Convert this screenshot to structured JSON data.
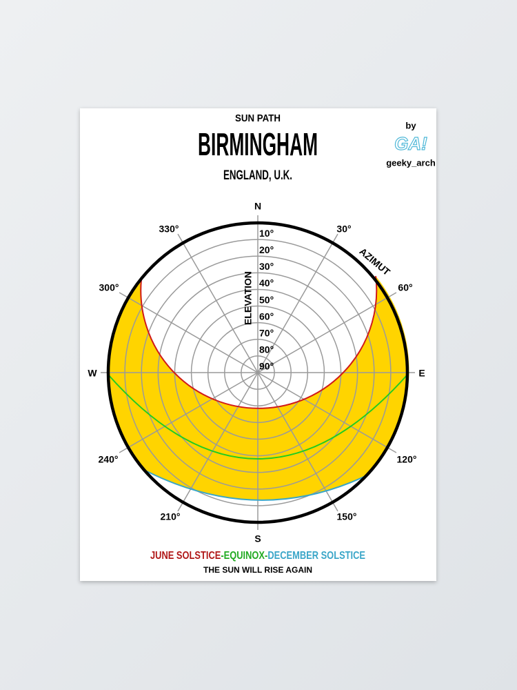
{
  "header": {
    "subtitle": "SUN PATH",
    "title": "BIRMINGHAM",
    "location": "ENGLAND, U.K."
  },
  "credit": {
    "by": "by",
    "logo": "GA!",
    "handle": "geeky_arch"
  },
  "compass": {
    "n": "N",
    "e": "E",
    "s": "S",
    "w": "W"
  },
  "azimuth": {
    "title": "AZIMUT",
    "labels": [
      "30°",
      "60°",
      "120°",
      "150°",
      "210°",
      "240°",
      "300°",
      "330°"
    ]
  },
  "elevation": {
    "title": "ELEVATION",
    "labels": [
      "10°",
      "20°",
      "30°",
      "40°",
      "50°",
      "60°",
      "70°",
      "80°",
      "90°"
    ]
  },
  "legend": {
    "june": "JUNE SOLSTICE",
    "equinox": "-EQUINOX-",
    "december": "DECEMBER SOLSTICE"
  },
  "tagline": "THE SUN WILL RISE AGAIN"
}
